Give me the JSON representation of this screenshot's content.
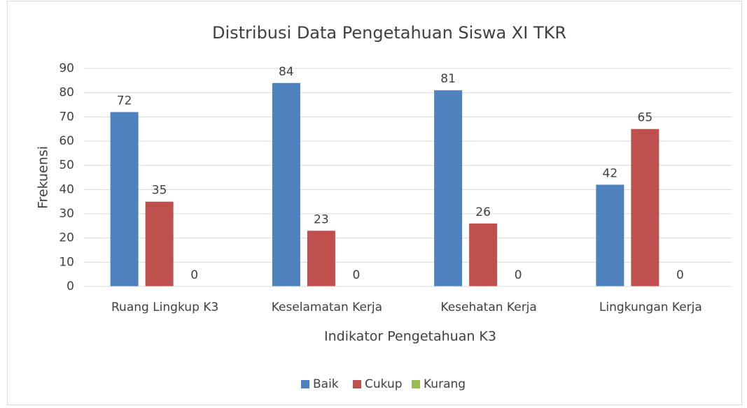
{
  "chart_data": {
    "type": "bar",
    "title": "Distribusi Data Pengetahuan Siswa XI TKR",
    "x_label": "Indikator Pengetahuan K3",
    "y_label": "Frekuensi",
    "categories": [
      "Ruang Lingkup K3",
      "Keselamatan Kerja",
      "Kesehatan Kerja",
      "Lingkungan Kerja"
    ],
    "series": [
      {
        "name": "Baik",
        "color": "#4f81bd",
        "values": [
          72,
          84,
          81,
          42
        ]
      },
      {
        "name": "Cukup",
        "color": "#c0504d",
        "values": [
          35,
          23,
          26,
          65
        ]
      },
      {
        "name": "Kurang",
        "color": "#9bbb59",
        "values": [
          0,
          0,
          0,
          0
        ]
      }
    ],
    "ylim": [
      0,
      90
    ],
    "yticks": [
      0,
      10,
      20,
      30,
      40,
      50,
      60,
      70,
      80,
      90
    ],
    "grid": true,
    "legend": "bottom"
  }
}
